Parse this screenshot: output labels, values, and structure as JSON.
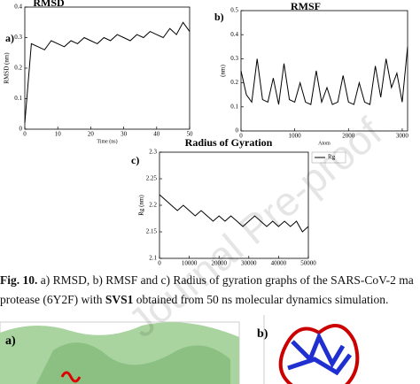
{
  "chart_data": [
    {
      "type": "line",
      "title": "RMSD",
      "panel_label": "a)",
      "x_label": "Time (ns)",
      "y_label": "RMSD (nm)",
      "x": [
        0,
        2,
        4,
        6,
        8,
        10,
        12,
        14,
        16,
        18,
        20,
        22,
        24,
        26,
        28,
        30,
        32,
        34,
        36,
        38,
        40,
        42,
        44,
        46,
        48,
        50
      ],
      "series": [
        {
          "color": "#000000",
          "values": [
            0.02,
            0.28,
            0.27,
            0.26,
            0.29,
            0.28,
            0.27,
            0.29,
            0.28,
            0.3,
            0.29,
            0.28,
            0.3,
            0.29,
            0.31,
            0.3,
            0.29,
            0.31,
            0.3,
            0.32,
            0.31,
            0.3,
            0.33,
            0.31,
            0.35,
            0.32
          ]
        }
      ],
      "xlim": [
        0,
        50
      ],
      "xticks": [
        0,
        10,
        20,
        30,
        40,
        50
      ],
      "ylim": [
        0,
        0.4
      ],
      "yticks": [
        0,
        0.1,
        0.2,
        0.3,
        0.4
      ]
    },
    {
      "type": "line",
      "title": "RMSF",
      "panel_label": "b)",
      "x_label": "Atom",
      "y_label": "(nm)",
      "x": [
        0,
        100,
        200,
        300,
        400,
        500,
        600,
        700,
        800,
        900,
        1000,
        1100,
        1200,
        1300,
        1400,
        1500,
        1600,
        1700,
        1800,
        1900,
        2000,
        2100,
        2200,
        2300,
        2400,
        2500,
        2600,
        2700,
        2800,
        2900,
        3000,
        3100
      ],
      "series": [
        {
          "color": "#000000",
          "values": [
            0.25,
            0.15,
            0.12,
            0.3,
            0.13,
            0.12,
            0.22,
            0.11,
            0.28,
            0.13,
            0.12,
            0.2,
            0.12,
            0.11,
            0.25,
            0.12,
            0.18,
            0.11,
            0.12,
            0.23,
            0.12,
            0.11,
            0.2,
            0.12,
            0.11,
            0.27,
            0.14,
            0.3,
            0.18,
            0.24,
            0.12,
            0.35
          ]
        }
      ],
      "xlim": [
        0,
        3100
      ],
      "xticks": [
        0,
        1000,
        2000,
        3000
      ],
      "ylim": [
        0,
        0.5
      ],
      "yticks": [
        0,
        0.1,
        0.2,
        0.3,
        0.4,
        0.5
      ]
    },
    {
      "type": "line",
      "title": "Radius of Gyration",
      "panel_label": "c)",
      "y_label": "Rg (nm)",
      "legend": "top-right",
      "x": [
        0,
        2000,
        4000,
        6000,
        8000,
        10000,
        12000,
        14000,
        16000,
        18000,
        20000,
        22000,
        24000,
        26000,
        28000,
        30000,
        32000,
        34000,
        36000,
        38000,
        40000,
        42000,
        44000,
        46000,
        48000,
        50000
      ],
      "series": [
        {
          "name": "Rg",
          "color": "#000000",
          "values": [
            2.22,
            2.21,
            2.2,
            2.19,
            2.2,
            2.19,
            2.18,
            2.19,
            2.18,
            2.17,
            2.18,
            2.17,
            2.18,
            2.17,
            2.16,
            2.17,
            2.18,
            2.17,
            2.16,
            2.17,
            2.16,
            2.17,
            2.16,
            2.17,
            2.15,
            2.16
          ]
        }
      ],
      "xlim": [
        0,
        50000
      ],
      "xticks": [
        0,
        10000,
        20000,
        30000,
        40000,
        50000
      ],
      "ylim": [
        2.1,
        2.3
      ],
      "yticks": [
        2.1,
        2.15,
        2.2,
        2.25,
        2.3
      ]
    }
  ],
  "caption": {
    "label": "Fig. 10.",
    "line1": " a) RMSD, b) RMSF and c) Radius of gyration graphs of the SARS-CoV-2 ma",
    "line2_start": "protease (6Y2F) with ",
    "line2_bold": "SVS1",
    "line2_end": " obtained from 50 ns molecular dynamics simulation."
  },
  "figure_bottom": {
    "label_a": "a)",
    "label_b": "b)"
  },
  "watermark": "Journal Pre-proof"
}
